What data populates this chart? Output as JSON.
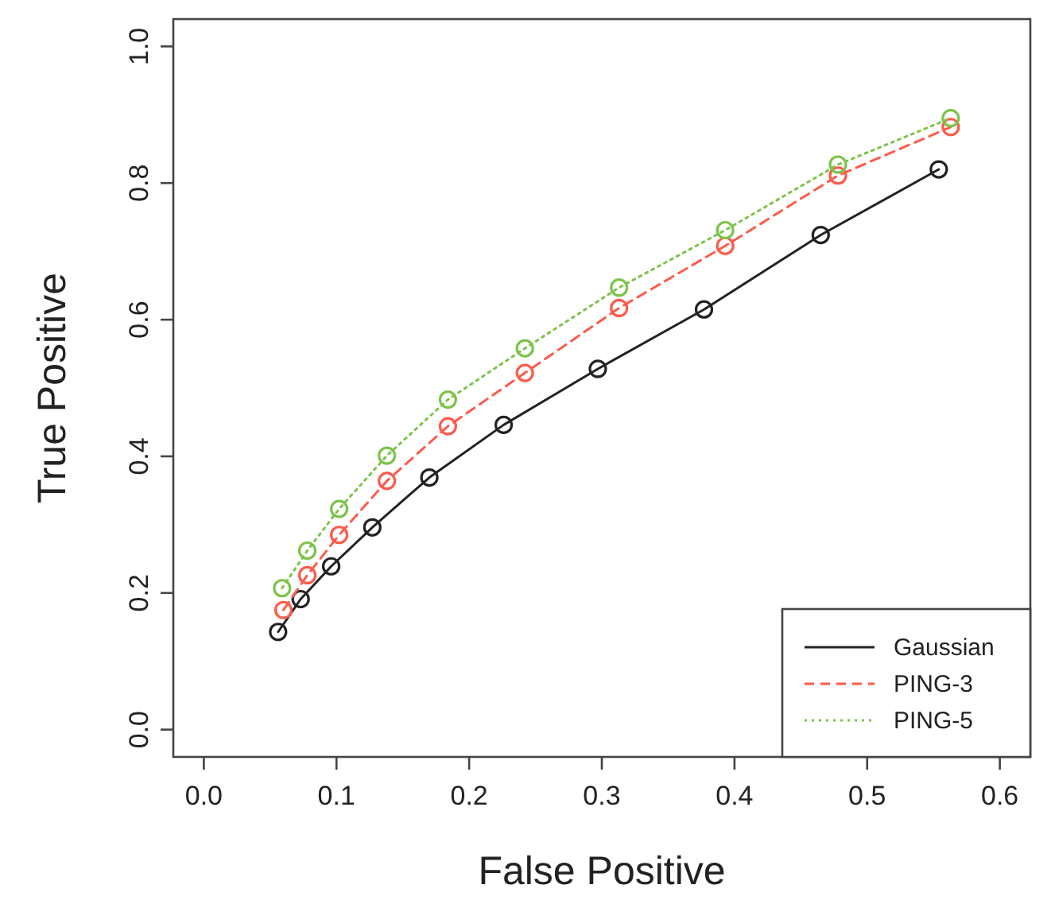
{
  "chart_data": {
    "type": "line",
    "xlabel": "False Positive",
    "ylabel": "True Positive",
    "xlim": [
      -0.023,
      0.623
    ],
    "ylim": [
      -0.04,
      1.04
    ],
    "xticks": [
      {
        "value": 0,
        "label": "0.0"
      },
      0.1,
      0.2,
      0.3,
      0.4,
      0.5,
      0.6
    ],
    "yticks": [
      {
        "value": 0,
        "label": "0.0"
      },
      0.2,
      0.4,
      0.6,
      0.8,
      {
        "value": 1,
        "label": "1.0"
      }
    ],
    "grid": false,
    "legend": "bottom right",
    "marker": "circle",
    "series": [
      {
        "name": "Gaussian",
        "color": "#222222",
        "line_style": "solid",
        "x": [
          0.056,
          0.073,
          0.096,
          0.127,
          0.17,
          0.226,
          0.297,
          0.377,
          0.465,
          0.554
        ],
        "values": [
          0.143,
          0.191,
          0.239,
          0.296,
          0.369,
          0.446,
          0.528,
          0.615,
          0.724,
          0.82
        ]
      },
      {
        "name": "PING-3",
        "color": "#ff5a4a",
        "line_style": "dashed",
        "x": [
          0.06,
          0.078,
          0.102,
          0.138,
          0.184,
          0.242,
          0.313,
          0.393,
          0.478,
          0.563
        ],
        "values": [
          0.175,
          0.226,
          0.285,
          0.364,
          0.444,
          0.522,
          0.617,
          0.708,
          0.811,
          0.882
        ]
      },
      {
        "name": "PING-5",
        "color": "#7cc34a",
        "line_style": "dotted",
        "x": [
          0.059,
          0.078,
          0.102,
          0.138,
          0.184,
          0.242,
          0.313,
          0.393,
          0.478,
          0.563
        ],
        "values": [
          0.207,
          0.262,
          0.323,
          0.401,
          0.483,
          0.558,
          0.647,
          0.731,
          0.827,
          0.895
        ]
      }
    ]
  }
}
